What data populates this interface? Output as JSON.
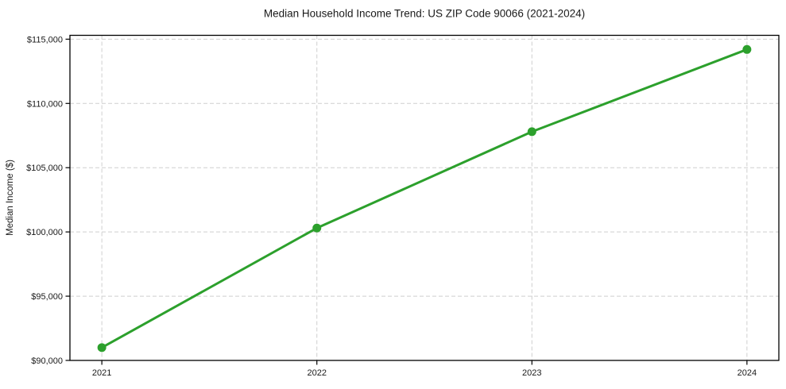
{
  "chart_data": {
    "type": "line",
    "title": "Median Household Income Trend: US ZIP Code 90066 (2021-2024)",
    "xlabel": "",
    "ylabel": "Median Income ($)",
    "categories": [
      "2021",
      "2022",
      "2023",
      "2024"
    ],
    "values": [
      91000,
      100300,
      107800,
      114200
    ],
    "x_tick_labels": [
      "2021",
      "2022",
      "2023",
      "2024"
    ],
    "y_ticks": [
      {
        "value": 90000,
        "label": "$90,000"
      },
      {
        "value": 95000,
        "label": "$95,000"
      },
      {
        "value": 100000,
        "label": "$100,000"
      },
      {
        "value": 105000,
        "label": "$105,000"
      },
      {
        "value": 110000,
        "label": "$110,000"
      },
      {
        "value": 115000,
        "label": "$115,000"
      }
    ],
    "ylim": [
      90000,
      115300
    ],
    "grid": true,
    "grid_style": "dashed",
    "legend_position": "none",
    "colors": {
      "line": "#2ca02c",
      "marker": "#2ca02c",
      "grid": "#cfcfcf",
      "frame": "#000000",
      "background": "#ffffff"
    }
  }
}
